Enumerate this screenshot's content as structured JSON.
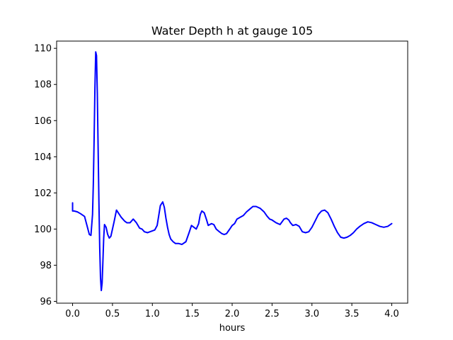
{
  "chart_data": {
    "type": "line",
    "title": "Water Depth h at gauge 105",
    "xlabel": "hours",
    "ylabel": "",
    "xlim": [
      -0.2,
      4.2
    ],
    "ylim": [
      95.9,
      110.4
    ],
    "xticks": [
      0.0,
      0.5,
      1.0,
      1.5,
      2.0,
      2.5,
      3.0,
      3.5,
      4.0
    ],
    "xtick_labels": [
      "0.0",
      "0.5",
      "1.0",
      "1.5",
      "2.0",
      "2.5",
      "3.0",
      "3.5",
      "4.0"
    ],
    "yticks": [
      96,
      98,
      100,
      102,
      104,
      106,
      108,
      110
    ],
    "ytick_labels": [
      "96",
      "98",
      "100",
      "102",
      "104",
      "106",
      "108",
      "110"
    ],
    "grid": false,
    "legend": false,
    "color": "#0000ff",
    "series": [
      {
        "x": [
          0.0,
          0.0,
          0.02,
          0.06,
          0.1,
          0.15,
          0.18,
          0.21,
          0.23,
          0.25,
          0.26,
          0.27,
          0.28,
          0.29,
          0.3,
          0.31,
          0.32,
          0.33,
          0.34,
          0.35,
          0.36,
          0.37,
          0.38,
          0.39,
          0.4,
          0.42,
          0.44,
          0.46,
          0.48,
          0.5,
          0.52,
          0.55,
          0.58,
          0.61,
          0.63,
          0.65,
          0.68,
          0.72,
          0.76,
          0.8,
          0.84,
          0.87,
          0.9,
          0.94,
          0.97,
          1.0,
          1.03,
          1.06,
          1.1,
          1.13,
          1.15,
          1.17,
          1.19,
          1.21,
          1.23,
          1.26,
          1.29,
          1.33,
          1.37,
          1.42,
          1.46,
          1.49,
          1.52,
          1.55,
          1.58,
          1.6,
          1.62,
          1.65,
          1.68,
          1.7,
          1.72,
          1.74,
          1.77,
          1.8,
          1.84,
          1.87,
          1.9,
          1.93,
          1.97,
          2.0,
          2.03,
          2.06,
          2.1,
          2.14,
          2.18,
          2.22,
          2.26,
          2.3,
          2.35,
          2.4,
          2.44,
          2.47,
          2.5,
          2.55,
          2.6,
          2.65,
          2.68,
          2.71,
          2.73,
          2.76,
          2.8,
          2.84,
          2.88,
          2.92,
          2.96,
          3.0,
          3.04,
          3.08,
          3.12,
          3.16,
          3.2,
          3.24,
          3.28,
          3.32,
          3.36,
          3.4,
          3.44,
          3.48,
          3.52,
          3.56,
          3.6,
          3.65,
          3.7,
          3.75,
          3.8,
          3.85,
          3.9,
          3.95,
          4.0
        ],
        "y": [
          101.45,
          101.0,
          101.0,
          100.95,
          100.85,
          100.7,
          100.2,
          99.7,
          99.65,
          100.8,
          102.5,
          105.0,
          107.8,
          109.8,
          109.6,
          107.5,
          104.5,
          101.5,
          99.0,
          97.3,
          96.6,
          97.0,
          98.2,
          99.5,
          100.25,
          100.1,
          99.7,
          99.5,
          99.6,
          100.0,
          100.4,
          101.05,
          100.85,
          100.65,
          100.55,
          100.45,
          100.35,
          100.35,
          100.55,
          100.35,
          100.05,
          100.0,
          99.85,
          99.8,
          99.85,
          99.9,
          99.95,
          100.2,
          101.3,
          101.5,
          101.2,
          100.6,
          100.1,
          99.7,
          99.45,
          99.3,
          99.2,
          99.2,
          99.15,
          99.3,
          99.8,
          100.2,
          100.1,
          100.0,
          100.3,
          100.8,
          101.0,
          100.9,
          100.5,
          100.2,
          100.25,
          100.3,
          100.25,
          100.0,
          99.85,
          99.75,
          99.7,
          99.75,
          100.0,
          100.2,
          100.3,
          100.55,
          100.65,
          100.75,
          100.95,
          101.1,
          101.25,
          101.25,
          101.15,
          100.95,
          100.7,
          100.55,
          100.5,
          100.35,
          100.25,
          100.55,
          100.6,
          100.5,
          100.35,
          100.2,
          100.25,
          100.15,
          99.85,
          99.8,
          99.85,
          100.1,
          100.45,
          100.8,
          101.0,
          101.05,
          100.9,
          100.55,
          100.15,
          99.8,
          99.55,
          99.5,
          99.55,
          99.65,
          99.8,
          100.0,
          100.15,
          100.3,
          100.4,
          100.35,
          100.25,
          100.15,
          100.1,
          100.15,
          100.3
        ]
      }
    ]
  }
}
